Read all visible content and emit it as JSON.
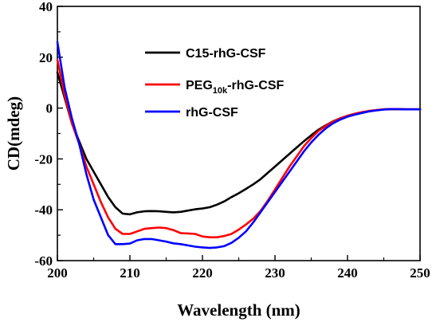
{
  "chart_data": {
    "type": "line",
    "xlabel": "Wavelength (nm)",
    "ylabel": "CD(mdeg)",
    "xlim": [
      200,
      250
    ],
    "ylim": [
      -60,
      40
    ],
    "x_ticks": [
      200,
      210,
      220,
      230,
      240,
      250
    ],
    "y_ticks": [
      -60,
      -40,
      -20,
      0,
      20,
      40
    ],
    "x_tick_labels": [
      "200",
      "210",
      "220",
      "230",
      "240",
      "250"
    ],
    "y_tick_labels": [
      "-60",
      "-40",
      "-20",
      "0",
      "20",
      "40"
    ],
    "grid": false,
    "legend_position": "top-right",
    "series": [
      {
        "name": "C15-rhG-CSF",
        "legend_main": "C15-rhG-CSF",
        "legend_sub": "",
        "legend_tail": "",
        "color": "#000000",
        "x": [
          200,
          201,
          202,
          203,
          204,
          205,
          206,
          207,
          208,
          209,
          210,
          211,
          212,
          213,
          214,
          215,
          216,
          217,
          218,
          219,
          220,
          221,
          222,
          223,
          224,
          225,
          226,
          227,
          228,
          229,
          230,
          231,
          232,
          233,
          234,
          235,
          236,
          237,
          238,
          239,
          240,
          241,
          242,
          243,
          244,
          245,
          246,
          247,
          248,
          249,
          250
        ],
        "y": [
          14,
          4,
          -6,
          -13,
          -20,
          -25,
          -30,
          -35,
          -39,
          -41.5,
          -41.8,
          -41,
          -40.6,
          -40.5,
          -40.6,
          -40.8,
          -41,
          -40.8,
          -40.3,
          -39.8,
          -39.5,
          -39,
          -38,
          -36.7,
          -35,
          -33.5,
          -31.8,
          -30,
          -28,
          -25.5,
          -23,
          -20.5,
          -18,
          -15.5,
          -13,
          -10.7,
          -8.5,
          -6.8,
          -5.2,
          -4,
          -3,
          -2.3,
          -1.7,
          -1.2,
          -0.8,
          -0.5,
          -0.4,
          -0.4,
          -0.5,
          -0.5,
          -0.5
        ]
      },
      {
        "name": "PEG10k-rhG-CSF",
        "legend_main": "PEG",
        "legend_sub": "10k",
        "legend_tail": "-rhG-CSF",
        "color": "#ff0000",
        "x": [
          200,
          201,
          202,
          203,
          204,
          205,
          206,
          207,
          208,
          209,
          210,
          211,
          212,
          213,
          214,
          215,
          216,
          217,
          218,
          219,
          220,
          221,
          222,
          223,
          224,
          225,
          226,
          227,
          228,
          229,
          230,
          231,
          232,
          233,
          234,
          235,
          236,
          237,
          238,
          239,
          240,
          241,
          242,
          243,
          244,
          245,
          246,
          247,
          248,
          249,
          250
        ],
        "y": [
          19,
          5,
          -6,
          -14,
          -23,
          -30,
          -37,
          -43,
          -47.5,
          -49.5,
          -49.5,
          -48.5,
          -47.5,
          -47.2,
          -47,
          -47.2,
          -48,
          -49.2,
          -49.3,
          -49.5,
          -50.5,
          -50.8,
          -50.8,
          -50.3,
          -49.5,
          -47.8,
          -45.8,
          -43.5,
          -40.5,
          -36.5,
          -32,
          -27.5,
          -23,
          -19,
          -15,
          -11.8,
          -9,
          -7,
          -5.3,
          -4,
          -3,
          -2.2,
          -1.6,
          -1.1,
          -0.8,
          -0.5,
          -0.4,
          -0.4,
          -0.5,
          -0.5,
          -0.5
        ]
      },
      {
        "name": "rhG-CSF",
        "legend_main": "rhG-CSF",
        "legend_sub": "",
        "legend_tail": "",
        "color": "#0000ff",
        "x": [
          200,
          201,
          202,
          203,
          204,
          205,
          206,
          207,
          208,
          209,
          210,
          211,
          212,
          213,
          214,
          215,
          216,
          217,
          218,
          219,
          220,
          221,
          222,
          223,
          224,
          225,
          226,
          227,
          228,
          229,
          230,
          231,
          232,
          233,
          234,
          235,
          236,
          237,
          238,
          239,
          240,
          241,
          242,
          243,
          244,
          245,
          246,
          247,
          248,
          249,
          250
        ],
        "y": [
          26,
          8,
          -4,
          -14,
          -26,
          -36,
          -43,
          -50,
          -53.5,
          -53.5,
          -53.3,
          -52,
          -51.5,
          -51.5,
          -52,
          -52.5,
          -53.2,
          -53.5,
          -54,
          -54.5,
          -54.8,
          -55,
          -54.8,
          -54.3,
          -53,
          -51,
          -48.5,
          -45,
          -41,
          -37,
          -33,
          -29,
          -25,
          -21,
          -17,
          -13.5,
          -10.5,
          -8,
          -6,
          -4.5,
          -3.4,
          -2.6,
          -1.9,
          -1.3,
          -0.9,
          -0.6,
          -0.4,
          -0.4,
          -0.5,
          -0.5,
          -0.5
        ]
      }
    ]
  }
}
